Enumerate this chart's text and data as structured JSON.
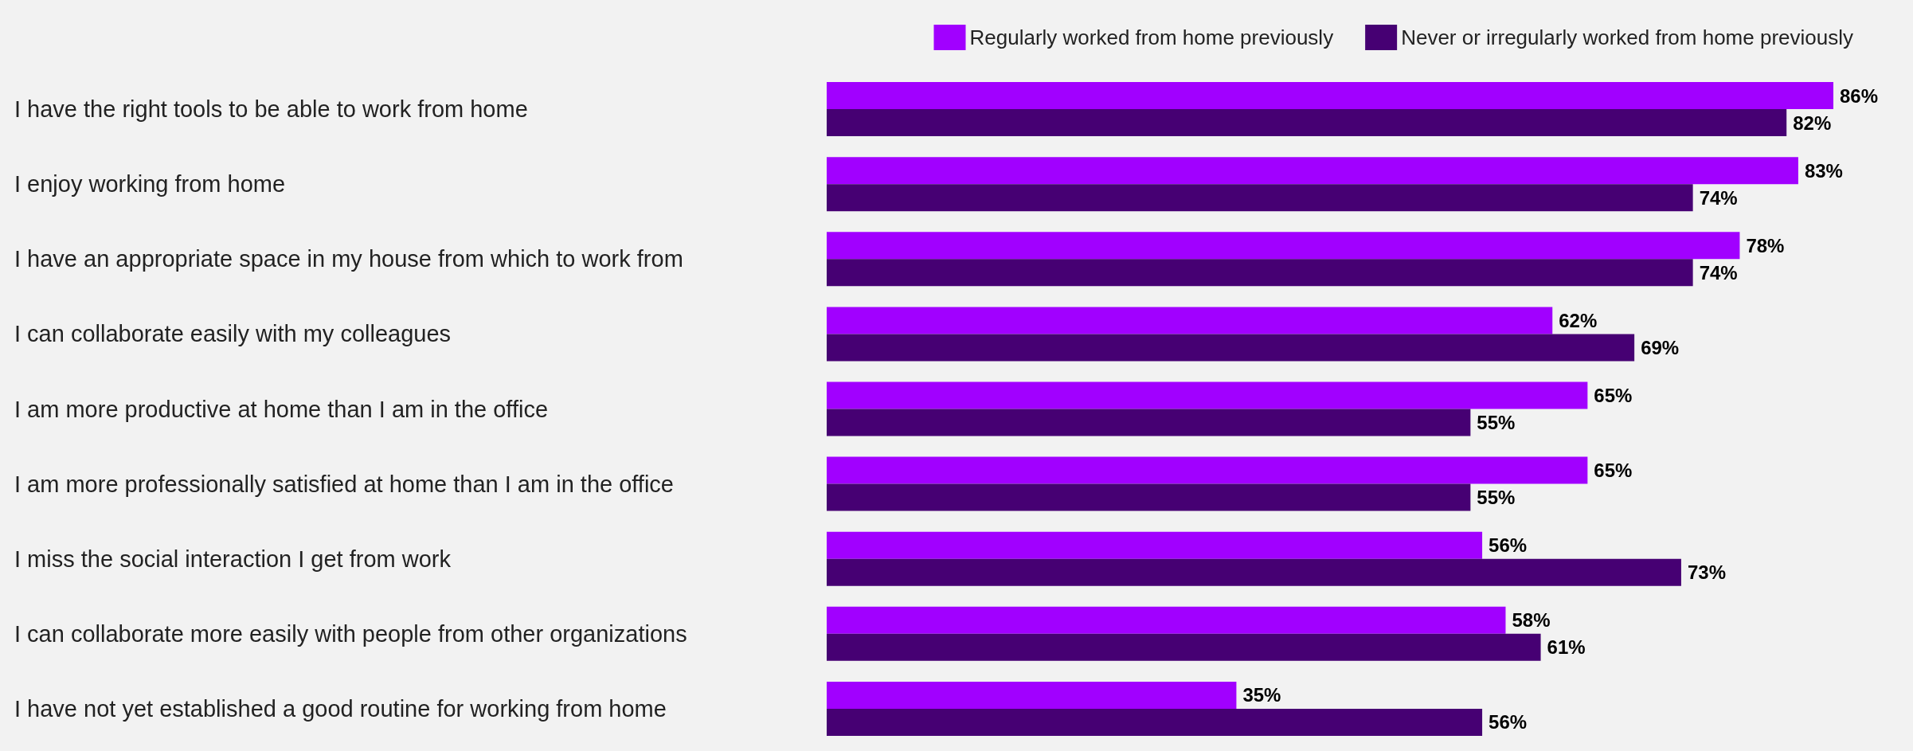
{
  "chart_data": {
    "type": "bar",
    "orientation": "horizontal",
    "legend": "top right",
    "grid": false,
    "categories": [
      "I have the right tools to be able to work from home",
      "I enjoy working from home",
      "I have an appropriate space in my house from which to work from",
      "I can collaborate easily with my colleagues",
      "I am more productive at home than I am in the office",
      "I am more professionally satisfied at home than I am in the office",
      "I miss the social interaction I get from work",
      "I can collaborate more easily with people from other organizations",
      "I have not yet established a good routine for working from home"
    ],
    "series": [
      {
        "name": "Regularly worked from home previously",
        "color": "#a100ff",
        "values": [
          86,
          83,
          78,
          62,
          65,
          65,
          56,
          58,
          35
        ],
        "value_labels": [
          "86%",
          "83%",
          "78%",
          "62%",
          "65%",
          "65%",
          "56%",
          "58%",
          "35%"
        ]
      },
      {
        "name": "Never or irregularly worked from home previously",
        "color": "#460073",
        "values": [
          82,
          74,
          74,
          69,
          55,
          55,
          73,
          61,
          56
        ],
        "value_labels": [
          "82%",
          "74%",
          "74%",
          "69%",
          "55%",
          "55%",
          "73%",
          "61%",
          "56%"
        ]
      }
    ]
  }
}
